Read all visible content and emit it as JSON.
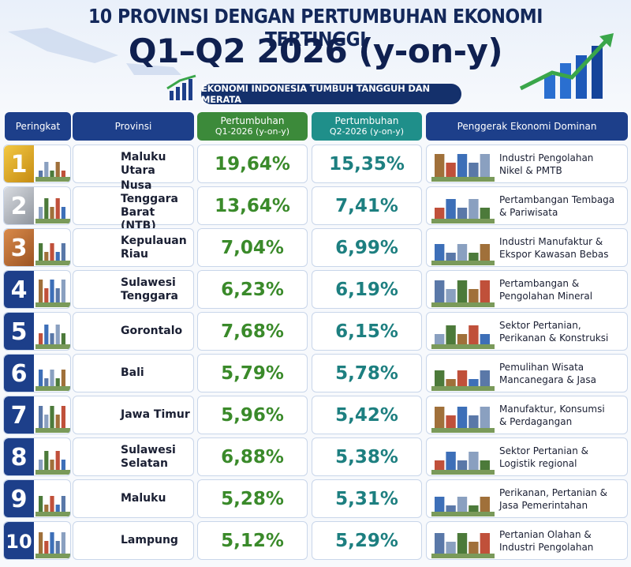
{
  "header": {
    "title": "10 PROVINSI DENGAN PERTUMBUHAN EKONOMI TERTINGGI",
    "subtitle": "Q1–Q2 2026 (y-on-y)",
    "tagline": "EKONOMI INDONESIA TUMBUH TANGGUH DAN MERATA"
  },
  "table": {
    "columns": [
      [
        "Peringkat"
      ],
      [
        "Provinsi"
      ],
      [
        "Pertumbuhan",
        "Q1-2026 (y-on-y)"
      ],
      [
        "Pertumbuhan",
        "Q2-2026 (y-on-y)"
      ],
      [
        "Penggerak Ekonomi Dominan"
      ]
    ],
    "rows": [
      {
        "rank": "1",
        "province": [
          "Maluku Utara"
        ],
        "q1": "19,64%",
        "q2": "15,35%",
        "driver": [
          "Industri Pengolahan",
          "Nikel & PMTB"
        ]
      },
      {
        "rank": "2",
        "province": [
          "Nusa Tenggara",
          "Barat (NTB)"
        ],
        "q1": "13,64%",
        "q2": "7,41%",
        "driver": [
          "Pertambangan Tembaga",
          "& Pariwisata"
        ]
      },
      {
        "rank": "3",
        "province": [
          "Kepulauan Riau"
        ],
        "q1": "7,04%",
        "q2": "6,99%",
        "driver": [
          "Industri Manufaktur &",
          "Ekspor Kawasan Bebas"
        ]
      },
      {
        "rank": "4",
        "province": [
          "Sulawesi",
          "Tenggara"
        ],
        "q1": "6,23%",
        "q2": "6,19%",
        "driver": [
          "Pertambangan &",
          "Pengolahan Mineral"
        ]
      },
      {
        "rank": "5",
        "province": [
          "Gorontalo"
        ],
        "q1": "7,68%",
        "q2": "6,15%",
        "driver": [
          "Sektor Pertanian,",
          "Perikanan & Konstruksi"
        ]
      },
      {
        "rank": "6",
        "province": [
          "Bali"
        ],
        "q1": "5,79%",
        "q2": "5,78%",
        "driver": [
          "Pemulihan Wisata",
          "Mancanegara & Jasa"
        ]
      },
      {
        "rank": "7",
        "province": [
          "Jawa Timur"
        ],
        "q1": "5,96%",
        "q2": "5,42%",
        "driver": [
          "Manufaktur, Konsumsi",
          "& Perdagangan"
        ]
      },
      {
        "rank": "8",
        "province": [
          "Sulawesi",
          "Selatan"
        ],
        "q1": "6,88%",
        "q2": "5,38%",
        "driver": [
          "Sektor Pertanian &",
          "Logistik regional"
        ]
      },
      {
        "rank": "9",
        "province": [
          "Maluku"
        ],
        "q1": "5,28%",
        "q2": "5,31%",
        "driver": [
          "Perikanan, Pertanian &",
          "Jasa Pemerintahan"
        ]
      },
      {
        "rank": "10",
        "province": [
          "Lampung"
        ],
        "q1": "5,12%",
        "q2": "5,29%",
        "driver": [
          "Pertanian Olahan &",
          "Industri Pengolahan"
        ]
      }
    ]
  }
}
